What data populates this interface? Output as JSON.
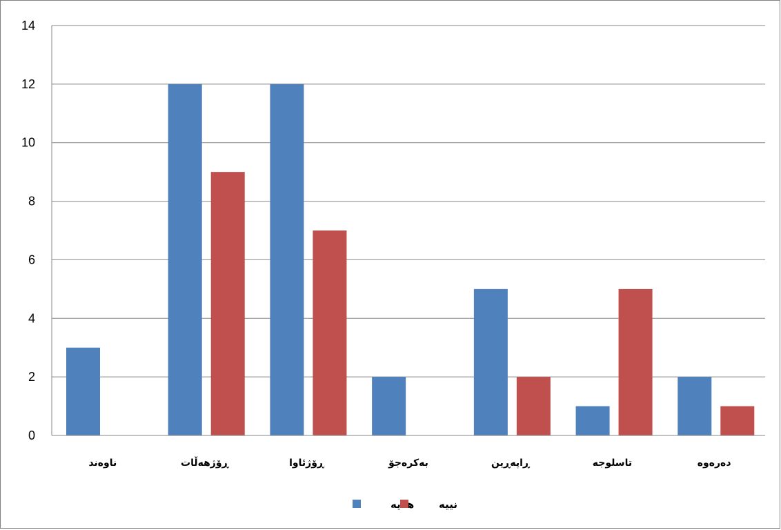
{
  "chart_data": {
    "type": "bar",
    "categories": [
      "ناوەند",
      "ڕۆژهەڵات",
      "ڕۆژئاوا",
      "بەکرەجۆ",
      "ڕاپەڕین",
      "تاسلوجە",
      "دەرەوە"
    ],
    "series": [
      {
        "name": "هەیە",
        "color": "#4f81bd",
        "values": [
          3,
          12,
          12,
          2,
          5,
          1,
          2
        ]
      },
      {
        "name": "نییە",
        "color": "#c0504d",
        "values": [
          0,
          9,
          7,
          0,
          2,
          5,
          1
        ]
      }
    ],
    "ylim": [
      0,
      14
    ],
    "yticks": [
      0,
      2,
      4,
      6,
      8,
      10,
      12,
      14
    ],
    "grid": true,
    "legend": "bottom"
  }
}
